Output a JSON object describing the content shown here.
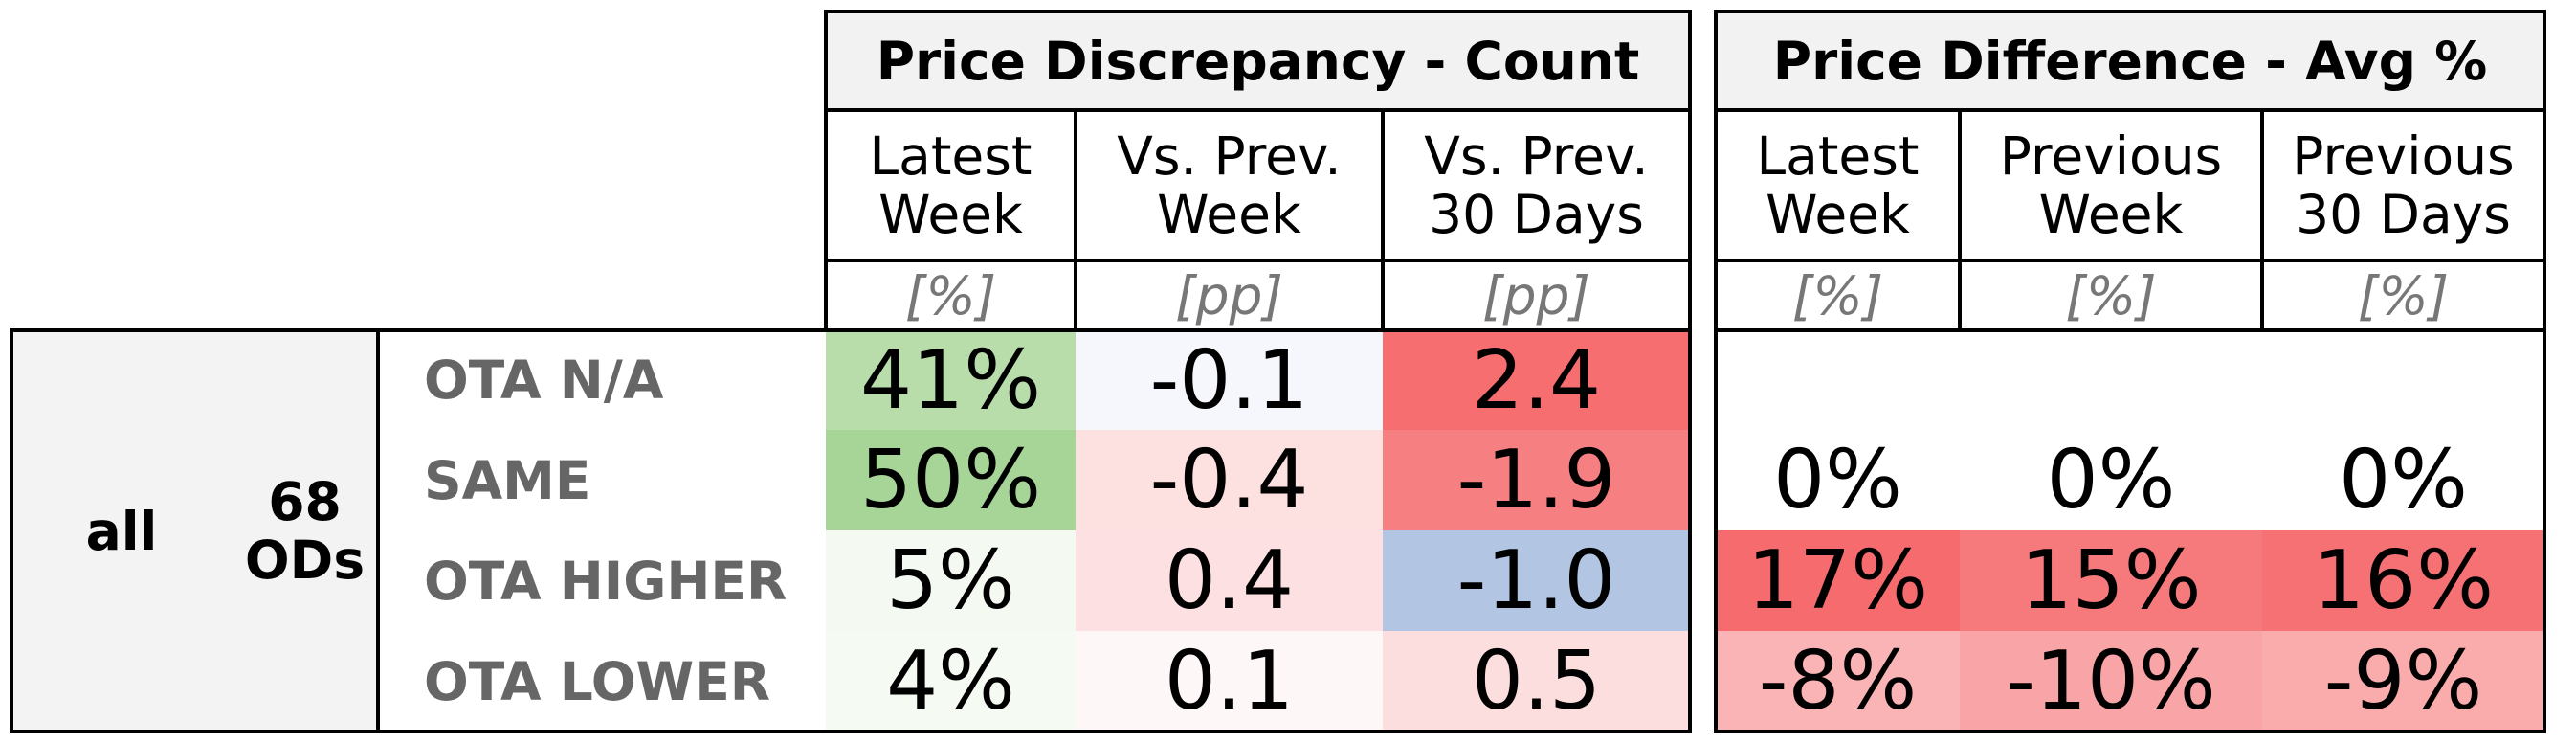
{
  "groups": [
    {
      "title": "Price Discrepancy - Count",
      "columns": [
        {
          "header": "Latest\nWeek",
          "unit": "[%]"
        },
        {
          "header": "Vs. Prev.\nWeek",
          "unit": "[pp]"
        },
        {
          "header": "Vs. Prev.\n30 Days",
          "unit": "[pp]"
        }
      ],
      "rows": [
        [
          "41%",
          "-0.1",
          "2.4"
        ],
        [
          "50%",
          "-0.4",
          "-1.9"
        ],
        [
          "5%",
          "0.4",
          "-1.0"
        ],
        [
          "4%",
          "0.1",
          "0.5"
        ]
      ],
      "colors": [
        [
          "#b9dcab",
          "#f6f7fc",
          "#f66e70"
        ],
        [
          "#a7d497",
          "#fde0e0",
          "#f67f81"
        ],
        [
          "#f4f9f2",
          "#fde0e1",
          "#b2c6e3"
        ],
        [
          "#f5faf3",
          "#fef7f7",
          "#fddede"
        ]
      ]
    },
    {
      "title": "Price Difference - Avg %",
      "columns": [
        {
          "header": "Latest\nWeek",
          "unit": "[%]"
        },
        {
          "header": "Previous\nWeek",
          "unit": "[%]"
        },
        {
          "header": "Previous\n30 Days",
          "unit": "[%]"
        }
      ],
      "rows": [
        [
          "",
          "",
          ""
        ],
        [
          "0%",
          "0%",
          "0%"
        ],
        [
          "17%",
          "15%",
          "16%"
        ],
        [
          "-8%",
          "-10%",
          "-9%"
        ]
      ],
      "colors": [
        [
          "#ffffff",
          "#ffffff",
          "#ffffff"
        ],
        [
          "#ffffff",
          "#ffffff",
          "#ffffff"
        ],
        [
          "#f66c6e",
          "#f67a7c",
          "#f67173"
        ],
        [
          "#fab4b5",
          "#f9a4a6",
          "#faacad"
        ]
      ]
    }
  ],
  "row_labels": [
    "OTA N/A",
    "SAME",
    "OTA HIGHER",
    "OTA LOWER"
  ],
  "left": {
    "scope": "all",
    "count": "68\nODs"
  }
}
